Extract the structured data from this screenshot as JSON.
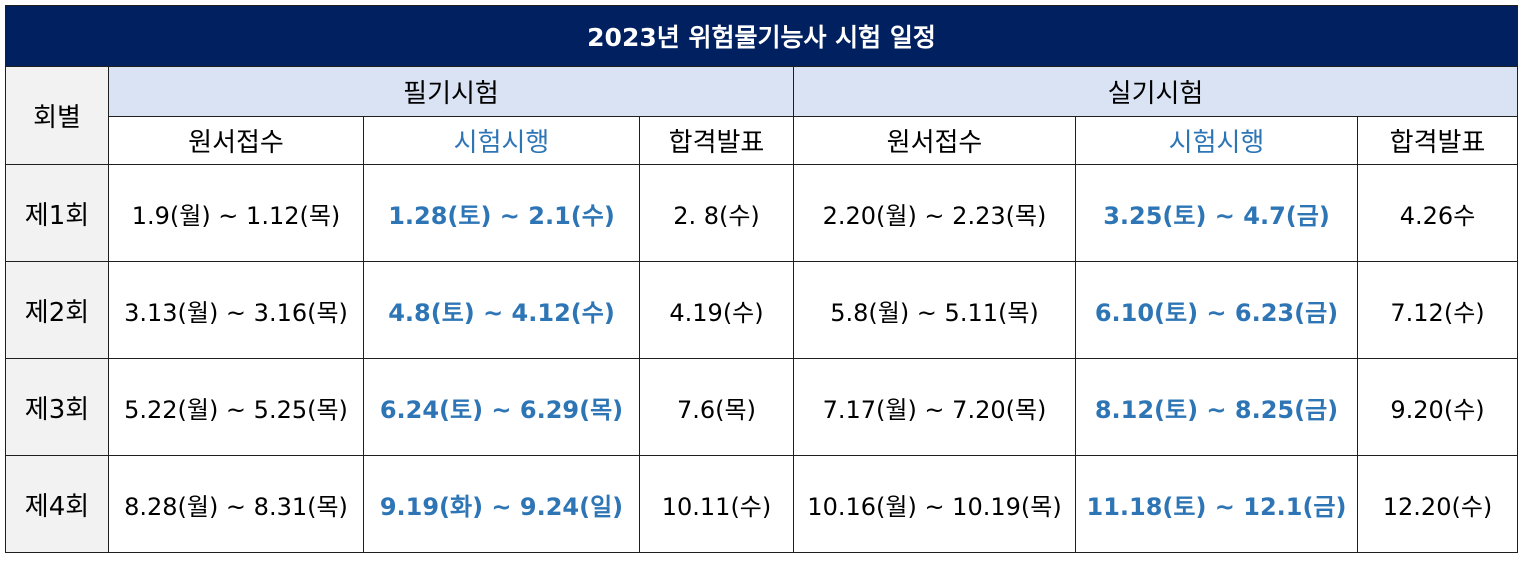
{
  "title": "2023년 위험물기능사 시험 일정",
  "round_header": "회별",
  "written": {
    "label": "필기시험",
    "cols": [
      "원서접수",
      "시험시행",
      "합격발표"
    ]
  },
  "practical": {
    "label": "실기시험",
    "cols": [
      "원서접수",
      "시험시행",
      "합격발표"
    ]
  },
  "colors": {
    "title_bg": "#002060",
    "subheader_bg": "#dae3f3",
    "round_bg": "#f2f2f2",
    "accent": "#2e75b6"
  },
  "rows": [
    {
      "round": "제1회",
      "w_apply": "1.9(월) ~ 1.12(목)",
      "w_exam": "1.28(토) ~ 2.1(수)",
      "w_result": "2. 8(수)",
      "p_apply": "2.20(월) ~ 2.23(목)",
      "p_exam": "3.25(토) ~ 4.7(금)",
      "p_result": "4.26수"
    },
    {
      "round": "제2회",
      "w_apply": "3.13(월) ~ 3.16(목)",
      "w_exam": "4.8(토) ~ 4.12(수)",
      "w_result": "4.19(수)",
      "p_apply": "5.8(월) ~ 5.11(목)",
      "p_exam": "6.10(토) ~ 6.23(금)",
      "p_result": "7.12(수)"
    },
    {
      "round": "제3회",
      "w_apply": "5.22(월) ~ 5.25(목)",
      "w_exam": "6.24(토) ~ 6.29(목)",
      "w_result": "7.6(목)",
      "p_apply": "7.17(월) ~ 7.20(목)",
      "p_exam": "8.12(토) ~ 8.25(금)",
      "p_result": "9.20(수)"
    },
    {
      "round": "제4회",
      "w_apply": "8.28(월) ~ 8.31(목)",
      "w_exam": "9.19(화) ~ 9.24(일)",
      "w_result": "10.11(수)",
      "p_apply": "10.16(월) ~ 10.19(목)",
      "p_exam": "11.18(토) ~ 12.1(금)",
      "p_result": "12.20(수)"
    }
  ]
}
